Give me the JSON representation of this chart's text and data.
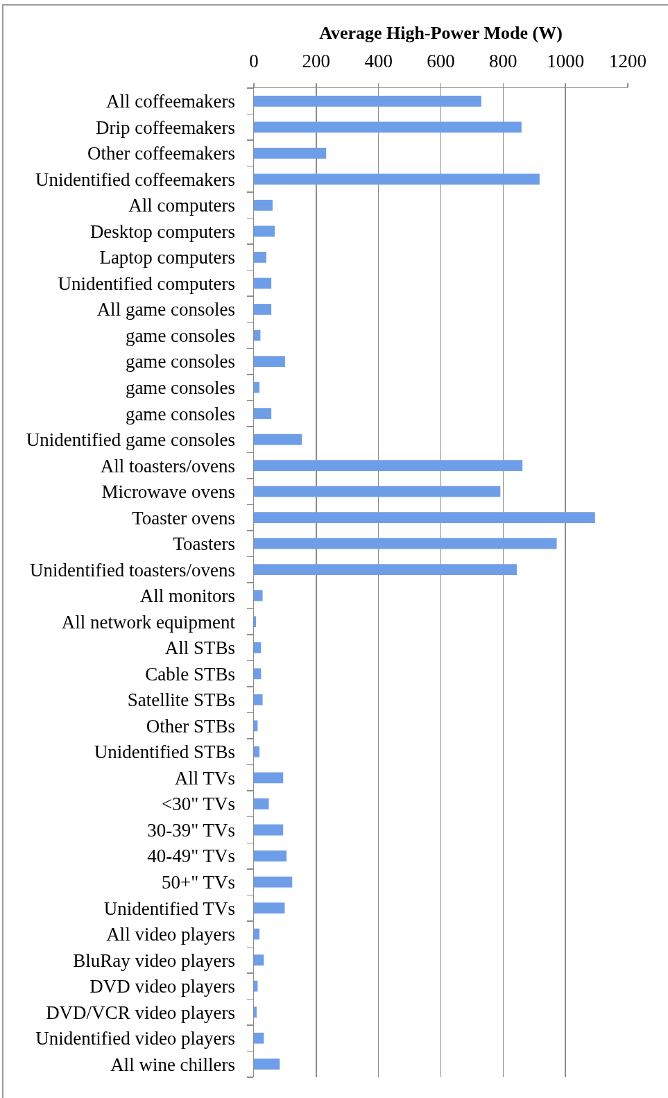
{
  "chart_data": {
    "type": "bar",
    "orientation": "horizontal",
    "xlabel": "Average High-Power Mode (W)",
    "categories": [
      "All coffeemakers",
      "Drip coffeemakers",
      "Other coffeemakers",
      "Unidentified coffeemakers",
      "All computers",
      "Desktop computers",
      "Laptop computers",
      "Unidentified computers",
      "All game consoles",
      "game consoles",
      "game consoles",
      "game consoles",
      "game consoles",
      "Unidentified game consoles",
      "All toasters/ovens",
      "Microwave ovens",
      "Toaster ovens",
      "Toasters",
      "Unidentified toasters/ovens",
      "All monitors",
      "All network equipment",
      "All STBs",
      "Cable STBs",
      "Satellite STBs",
      "Other STBs",
      "Unidentified STBs",
      "All TVs",
      "<30\" TVs",
      "30-39\" TVs",
      "40-49\" TVs",
      "50+\" TVs",
      "Unidentified TVs",
      "All video players",
      "BluRay video players",
      "DVD video players",
      "DVD/VCR video players",
      "Unidentified video players",
      "All wine chillers"
    ],
    "values": [
      730,
      859,
      232,
      917,
      60,
      67,
      40,
      56,
      56,
      21,
      100,
      18,
      56,
      154,
      862,
      791,
      1095,
      972,
      844,
      28,
      7,
      23,
      23,
      28,
      12,
      18,
      94,
      48,
      94,
      105,
      123,
      99,
      18,
      32,
      12,
      9,
      32,
      83
    ],
    "color": "#6f9ee8",
    "xlim": [
      0,
      1200
    ],
    "xticks": [
      0,
      200,
      400,
      600,
      800,
      1000,
      1200
    ],
    "grid": "x"
  }
}
